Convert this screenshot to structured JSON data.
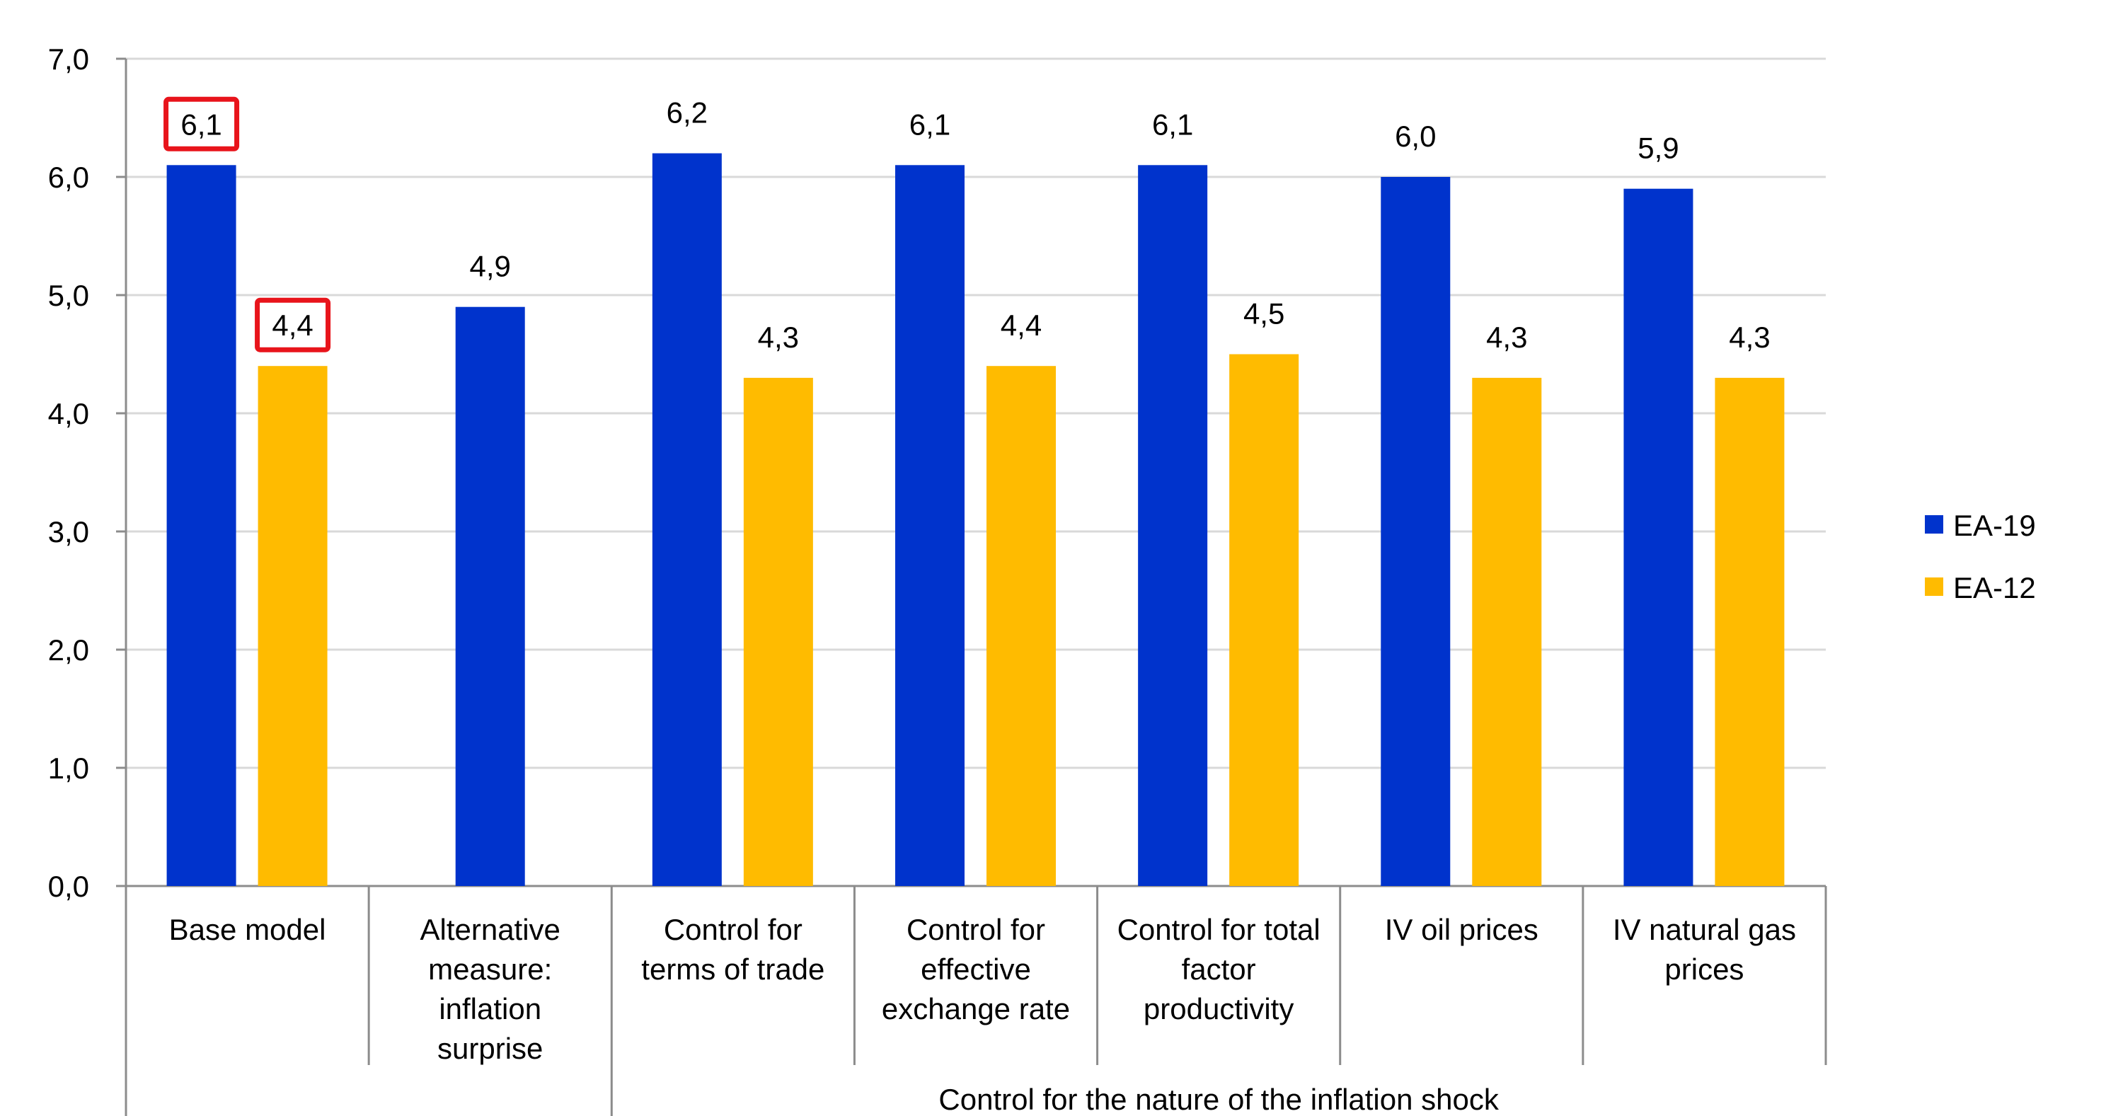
{
  "chart_data": {
    "type": "bar",
    "title": "",
    "xlabel": "",
    "ylabel": "",
    "ylim": [
      0,
      7
    ],
    "yticks": [
      "0,0",
      "1,0",
      "2,0",
      "3,0",
      "4,0",
      "5,0",
      "6,0",
      "7,0"
    ],
    "grid": true,
    "legend_position": "right",
    "categories": [
      [
        "Base model"
      ],
      [
        "Alternative",
        "measure:",
        "inflation",
        "surprise"
      ],
      [
        "Control for",
        "terms of trade"
      ],
      [
        "Control for",
        "effective",
        "exchange rate"
      ],
      [
        "Control for total",
        "factor",
        "productivity"
      ],
      [
        "IV oil prices"
      ],
      [
        "IV natural gas",
        "prices"
      ]
    ],
    "group_label": "Control for the nature of the inflation shock",
    "series": [
      {
        "name": "EA-19",
        "color": "#0033cc",
        "values": [
          6.1,
          4.9,
          6.2,
          6.1,
          6.1,
          6.0,
          5.9
        ],
        "labels": [
          "6,1",
          "4,9",
          "6,2",
          "6,1",
          "6,1",
          "6,0",
          "5,9"
        ]
      },
      {
        "name": "EA-12",
        "color": "#ffbb00",
        "values": [
          4.4,
          null,
          4.3,
          4.4,
          4.5,
          4.3,
          4.3
        ],
        "labels": [
          "4,4",
          "",
          "4,3",
          "4,4",
          "4,5",
          "4,3",
          "4,3"
        ]
      }
    ],
    "highlighted_labels": [
      "6,1",
      "4,4"
    ],
    "highlight_color": "#e8141b"
  }
}
